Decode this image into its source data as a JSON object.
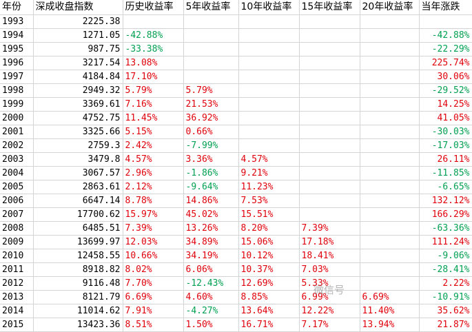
{
  "headers": [
    "年份",
    "深成收盘指数",
    "历史收益率",
    "5年收益率",
    "10年收益率",
    "15年收益率",
    "20年收益率",
    "当年涨跌"
  ],
  "rows": [
    [
      "1993",
      "2225.38",
      "",
      "",
      "",
      "",
      "",
      ""
    ],
    [
      "1994",
      "1271.05",
      "-42.88%",
      "",
      "",
      "",
      "",
      "-42.88%"
    ],
    [
      "1995",
      "987.75",
      "-33.38%",
      "",
      "",
      "",
      "",
      "-22.29%"
    ],
    [
      "1996",
      "3217.54",
      "13.08%",
      "",
      "",
      "",
      "",
      "225.74%"
    ],
    [
      "1997",
      "4184.84",
      "17.10%",
      "",
      "",
      "",
      "",
      "30.06%"
    ],
    [
      "1998",
      "2949.32",
      "5.79%",
      "5.79%",
      "",
      "",
      "",
      "-29.52%"
    ],
    [
      "1999",
      "3369.61",
      "7.16%",
      "21.53%",
      "",
      "",
      "",
      "14.25%"
    ],
    [
      "2000",
      "4752.75",
      "11.45%",
      "36.92%",
      "",
      "",
      "",
      "41.05%"
    ],
    [
      "2001",
      "3325.66",
      "5.15%",
      "0.66%",
      "",
      "",
      "",
      "-30.03%"
    ],
    [
      "2002",
      "2759.3",
      "2.42%",
      "-7.99%",
      "",
      "",
      "",
      "-17.03%"
    ],
    [
      "2003",
      "3479.8",
      "4.57%",
      "3.36%",
      "4.57%",
      "",
      "",
      "26.11%"
    ],
    [
      "2004",
      "3067.57",
      "2.96%",
      "-1.86%",
      "9.21%",
      "",
      "",
      "-11.85%"
    ],
    [
      "2005",
      "2863.61",
      "2.12%",
      "-9.64%",
      "11.23%",
      "",
      "",
      "-6.65%"
    ],
    [
      "2006",
      "6647.14",
      "8.78%",
      "14.86%",
      "7.53%",
      "",
      "",
      "132.12%"
    ],
    [
      "2007",
      "17700.62",
      "15.97%",
      "45.02%",
      "15.51%",
      "",
      "",
      "166.29%"
    ],
    [
      "2008",
      "6485.51",
      "7.39%",
      "13.26%",
      "8.20%",
      "7.39%",
      "",
      "-63.36%"
    ],
    [
      "2009",
      "13699.97",
      "12.03%",
      "34.89%",
      "15.06%",
      "17.18%",
      "",
      "111.24%"
    ],
    [
      "2010",
      "12458.55",
      "10.66%",
      "34.19%",
      "10.12%",
      "18.41%",
      "",
      "-9.06%"
    ],
    [
      "2011",
      "8918.82",
      "8.02%",
      "6.06%",
      "10.37%",
      "7.03%",
      "",
      "-28.41%"
    ],
    [
      "2012",
      "9116.48",
      "7.70%",
      "-12.43%",
      "12.69%",
      "5.33%",
      "",
      "2.22%"
    ],
    [
      "2013",
      "8121.79",
      "6.69%",
      "4.60%",
      "8.85%",
      "6.99%",
      "6.69%",
      "-10.91%"
    ],
    [
      "2014",
      "11014.62",
      "7.91%",
      "-4.27%",
      "13.64%",
      "12.22%",
      "11.40%",
      "35.62%"
    ],
    [
      "2015",
      "13423.36",
      "8.51%",
      "1.50%",
      "16.71%",
      "7.17%",
      "13.94%",
      "21.87%"
    ]
  ],
  "watermark": "微信号"
}
